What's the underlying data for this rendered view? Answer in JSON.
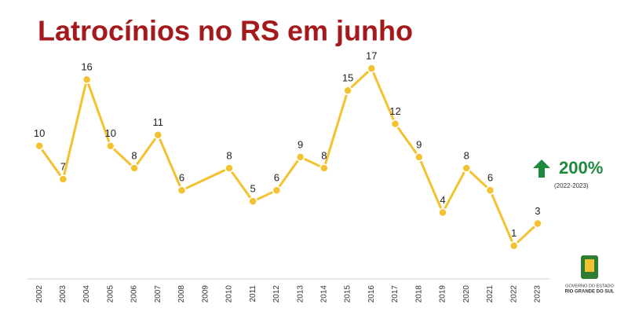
{
  "chart_data": {
    "type": "line",
    "title": "Latrocínios no RS em junho",
    "x": [
      2002,
      2003,
      2004,
      2005,
      2006,
      2007,
      2008,
      2010,
      2011,
      2012,
      2013,
      2014,
      2015,
      2016,
      2017,
      2018,
      2019,
      2020,
      2021,
      2022,
      2023
    ],
    "series": [
      {
        "color": "#f2c230",
        "values": [
          10,
          7,
          16,
          10,
          8,
          11,
          6,
          8,
          5,
          6,
          9,
          8,
          15,
          17,
          12,
          9,
          4,
          8,
          6,
          1,
          3
        ]
      }
    ],
    "xlim": [
      2001.5,
      2023.5
    ],
    "xticks": [
      2002,
      2003,
      2004,
      2005,
      2006,
      2007,
      2008,
      2009,
      2010,
      2011,
      2012,
      2013,
      2014,
      2015,
      2016,
      2017,
      2018,
      2019,
      2020,
      2021,
      2022,
      2023
    ],
    "ylim": [
      -2,
      18
    ],
    "annotation": {
      "text": "200%",
      "subtext": "(2022-2023)",
      "color": "#1e8a3e"
    },
    "logo": {
      "line1": "GOVERNO DO ESTADO",
      "line2": "RIO GRANDE DO SUL"
    }
  }
}
